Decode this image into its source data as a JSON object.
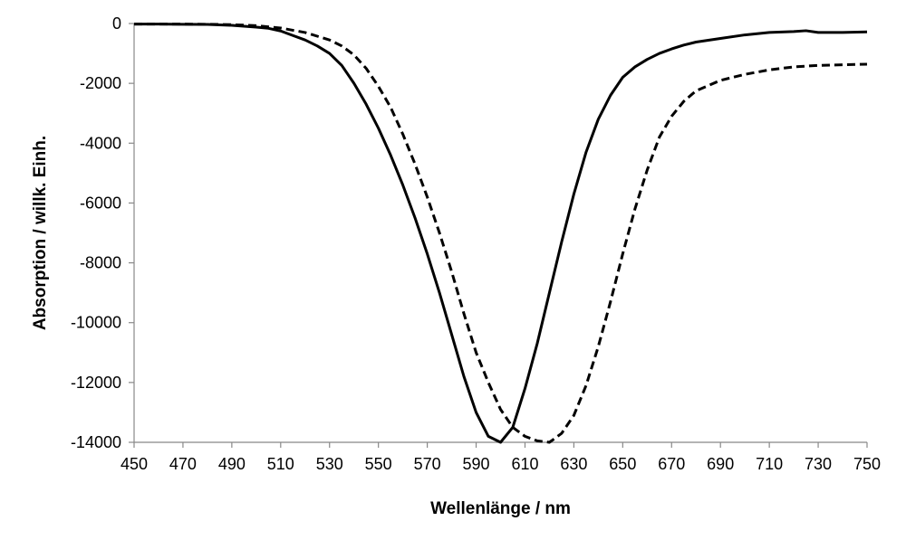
{
  "chart_data": {
    "type": "line",
    "xlabel": "Wellenlänge / nm",
    "ylabel": "Absorption / willk. Einh.",
    "xlim": [
      450,
      750
    ],
    "ylim": [
      -14000,
      0
    ],
    "x_ticks": [
      450,
      470,
      490,
      510,
      530,
      550,
      570,
      590,
      610,
      630,
      650,
      670,
      690,
      710,
      730,
      750
    ],
    "y_ticks": [
      0,
      -2000,
      -4000,
      -6000,
      -8000,
      -10000,
      -12000,
      -14000
    ],
    "grid": false,
    "legend": "none",
    "series": [
      {
        "style": "solid",
        "color": "#000000",
        "points": [
          [
            450,
            -20
          ],
          [
            460,
            -20
          ],
          [
            470,
            -25
          ],
          [
            480,
            -30
          ],
          [
            490,
            -60
          ],
          [
            500,
            -120
          ],
          [
            505,
            -160
          ],
          [
            510,
            -250
          ],
          [
            515,
            -400
          ],
          [
            520,
            -550
          ],
          [
            525,
            -750
          ],
          [
            530,
            -1000
          ],
          [
            535,
            -1400
          ],
          [
            540,
            -2000
          ],
          [
            545,
            -2700
          ],
          [
            550,
            -3500
          ],
          [
            555,
            -4400
          ],
          [
            560,
            -5400
          ],
          [
            565,
            -6500
          ],
          [
            570,
            -7700
          ],
          [
            575,
            -9000
          ],
          [
            580,
            -10400
          ],
          [
            585,
            -11800
          ],
          [
            590,
            -13000
          ],
          [
            595,
            -13800
          ],
          [
            600,
            -14000
          ],
          [
            605,
            -13500
          ],
          [
            610,
            -12200
          ],
          [
            615,
            -10700
          ],
          [
            620,
            -9000
          ],
          [
            625,
            -7300
          ],
          [
            630,
            -5700
          ],
          [
            635,
            -4300
          ],
          [
            640,
            -3200
          ],
          [
            645,
            -2400
          ],
          [
            650,
            -1800
          ],
          [
            655,
            -1450
          ],
          [
            660,
            -1200
          ],
          [
            665,
            -1000
          ],
          [
            670,
            -850
          ],
          [
            675,
            -720
          ],
          [
            680,
            -620
          ],
          [
            690,
            -500
          ],
          [
            700,
            -380
          ],
          [
            710,
            -300
          ],
          [
            720,
            -270
          ],
          [
            725,
            -240
          ],
          [
            730,
            -300
          ],
          [
            740,
            -300
          ],
          [
            750,
            -280
          ]
        ]
      },
      {
        "style": "dashed",
        "color": "#000000",
        "points": [
          [
            450,
            -20
          ],
          [
            470,
            -20
          ],
          [
            480,
            -25
          ],
          [
            490,
            -40
          ],
          [
            500,
            -70
          ],
          [
            510,
            -150
          ],
          [
            520,
            -300
          ],
          [
            530,
            -550
          ],
          [
            535,
            -750
          ],
          [
            540,
            -1050
          ],
          [
            545,
            -1500
          ],
          [
            550,
            -2100
          ],
          [
            555,
            -2800
          ],
          [
            560,
            -3700
          ],
          [
            565,
            -4700
          ],
          [
            570,
            -5800
          ],
          [
            575,
            -7000
          ],
          [
            580,
            -8300
          ],
          [
            585,
            -9700
          ],
          [
            590,
            -11000
          ],
          [
            595,
            -12000
          ],
          [
            600,
            -12900
          ],
          [
            605,
            -13500
          ],
          [
            610,
            -13800
          ],
          [
            615,
            -13950
          ],
          [
            620,
            -14000
          ],
          [
            625,
            -13700
          ],
          [
            630,
            -13100
          ],
          [
            635,
            -12100
          ],
          [
            640,
            -10800
          ],
          [
            645,
            -9300
          ],
          [
            650,
            -7700
          ],
          [
            655,
            -6200
          ],
          [
            660,
            -4900
          ],
          [
            665,
            -3800
          ],
          [
            670,
            -3100
          ],
          [
            675,
            -2600
          ],
          [
            680,
            -2250
          ],
          [
            690,
            -1900
          ],
          [
            700,
            -1700
          ],
          [
            710,
            -1550
          ],
          [
            720,
            -1450
          ],
          [
            730,
            -1400
          ],
          [
            740,
            -1380
          ],
          [
            750,
            -1360
          ]
        ]
      }
    ]
  }
}
